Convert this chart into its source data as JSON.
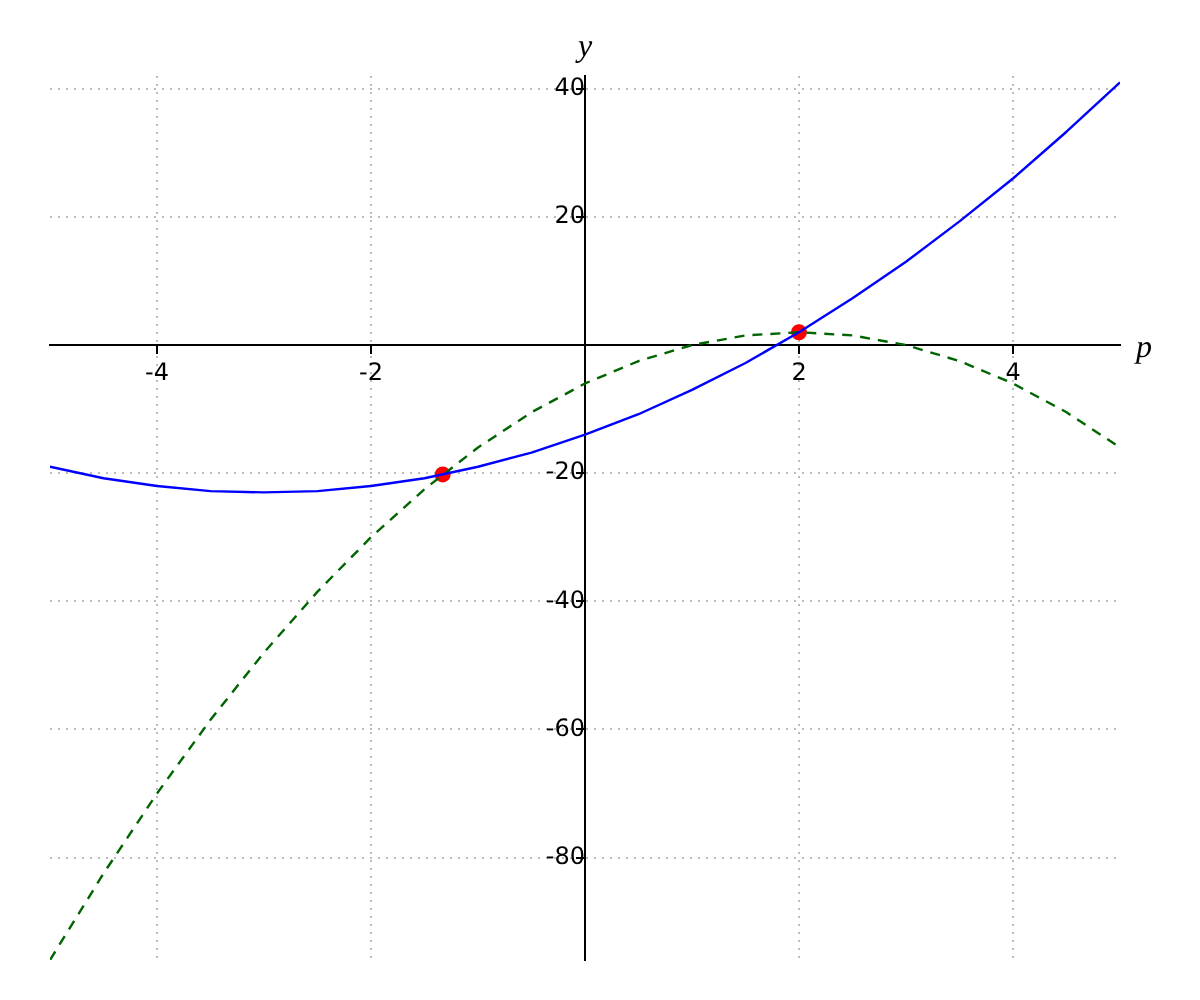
{
  "chart_data": {
    "type": "line",
    "xlabel": "p",
    "ylabel": "y",
    "xlim": [
      -5,
      5
    ],
    "ylim": [
      -96,
      42
    ],
    "xticks": [
      -4,
      -2,
      2,
      4
    ],
    "yticks": [
      -80,
      -60,
      -40,
      -20,
      {
        "value": 0,
        "label": null
      },
      20,
      40
    ],
    "grid": true,
    "legend": false,
    "marker": "none",
    "series": [
      {
        "color": "#0000ff",
        "line_style": "solid",
        "x": [
          -5,
          -4.5,
          -4,
          -3.5,
          -3,
          -2.5,
          -2,
          -1.5,
          -1,
          -0.5,
          0,
          0.5,
          1,
          1.5,
          2,
          2.5,
          3,
          3.5,
          4,
          4.5,
          5
        ],
        "values": [
          -19,
          -20.8,
          -22,
          -22.8,
          -23,
          -22.8,
          -22,
          -20.8,
          -19,
          -16.8,
          -14,
          -10.8,
          -7,
          -2.8,
          2,
          7.3,
          13,
          19.3,
          26,
          33.3,
          41
        ]
      },
      {
        "color": "#006400",
        "line_style": "dashed",
        "x": [
          -5,
          -4.5,
          -4,
          -3.5,
          -3,
          -2.5,
          -2,
          -1.5,
          -1,
          -0.5,
          0,
          0.5,
          1,
          1.5,
          2,
          2.5,
          3,
          3.5,
          4,
          4.5,
          5
        ],
        "values": [
          -96,
          -82.5,
          -70,
          -58.5,
          -48,
          -38.5,
          -30,
          -22.5,
          -16,
          -10.5,
          -6,
          -2.5,
          0,
          1.5,
          2,
          1.5,
          0,
          -2.5,
          -6,
          -10.5,
          -16
        ]
      },
      {
        "type": "scatter",
        "color": "#ff0000",
        "marker": "circle",
        "x": [
          -1.33,
          2
        ],
        "values": [
          -20.2,
          2
        ]
      }
    ]
  }
}
